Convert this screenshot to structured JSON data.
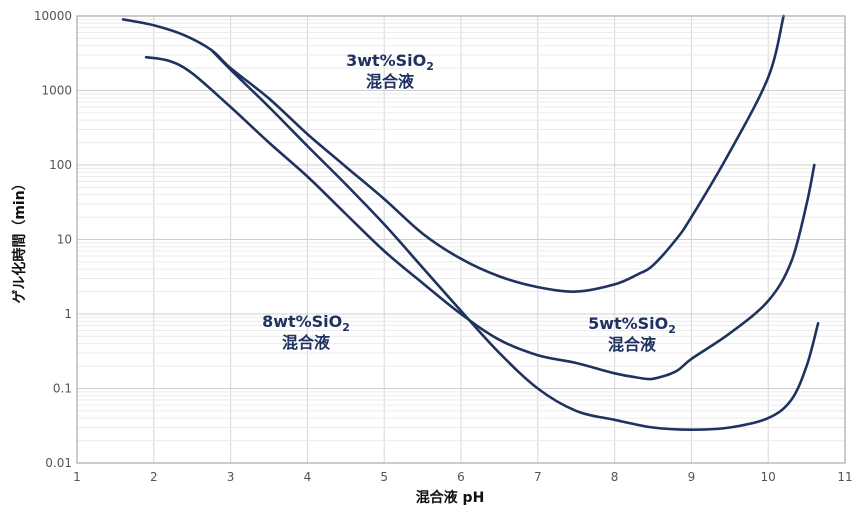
{
  "chart_data": {
    "type": "line",
    "xlabel": "混合液 pH",
    "ylabel": "ゲル化時間（min）",
    "xlim": [
      1,
      11
    ],
    "ylim": [
      0.01,
      10000
    ],
    "yscale": "log",
    "x_ticks": [
      "1",
      "2",
      "3",
      "4",
      "5",
      "6",
      "7",
      "8",
      "9",
      "10",
      "11"
    ],
    "y_ticks": [
      "0.01",
      "0.1",
      "1",
      "10",
      "100",
      "1000",
      "10000"
    ],
    "grid": true,
    "colors": {
      "line": "#1f3260",
      "grid": "#d6d6d6",
      "axis": "#9a9a9a"
    },
    "series": [
      {
        "x": [
          1.6,
          2.0,
          2.4,
          2.75,
          3.0,
          3.5,
          4.0,
          4.5,
          5.0,
          5.5,
          6.0,
          6.5,
          7.0,
          7.5,
          8.0,
          8.3,
          8.5,
          8.8,
          9.0,
          9.5,
          10.0,
          10.2
        ],
        "values": [
          9000,
          7500,
          5500,
          3500,
          2000,
          780,
          260,
          95,
          35,
          12,
          5.5,
          3.2,
          2.3,
          2.0,
          2.5,
          3.4,
          4.5,
          10,
          20,
          150,
          1500,
          10000
        ],
        "annotation": {
          "line1": "3wt%SiO",
          "sub": "2",
          "line2": "混合液"
        }
      },
      {
        "x": [
          1.9,
          2.2,
          2.5,
          3.0,
          3.5,
          4.0,
          4.5,
          5.0,
          5.5,
          6.0,
          6.5,
          7.0,
          7.5,
          8.0,
          8.3,
          8.5,
          8.8,
          9.0,
          9.5,
          10.0,
          10.3,
          10.5,
          10.6
        ],
        "values": [
          2800,
          2500,
          1700,
          600,
          200,
          70,
          22,
          7,
          2.6,
          1.0,
          0.45,
          0.28,
          0.22,
          0.16,
          0.14,
          0.135,
          0.17,
          0.25,
          0.55,
          1.5,
          5,
          30,
          100
        ],
        "annotation": {
          "line1": "5wt%SiO",
          "sub": "2",
          "line2": "混合液"
        }
      },
      {
        "x": [
          2.75,
          3.0,
          3.5,
          4.0,
          4.5,
          5.0,
          5.5,
          6.0,
          6.5,
          7.0,
          7.5,
          8.0,
          8.5,
          9.0,
          9.5,
          10.0,
          10.3,
          10.5,
          10.65
        ],
        "values": [
          3500,
          1900,
          600,
          180,
          55,
          16,
          4.2,
          1.1,
          0.3,
          0.1,
          0.05,
          0.038,
          0.03,
          0.028,
          0.03,
          0.04,
          0.07,
          0.2,
          0.75
        ],
        "annotation": {
          "line1": "8wt%SiO",
          "sub": "2",
          "line2": "混合液"
        }
      }
    ]
  }
}
